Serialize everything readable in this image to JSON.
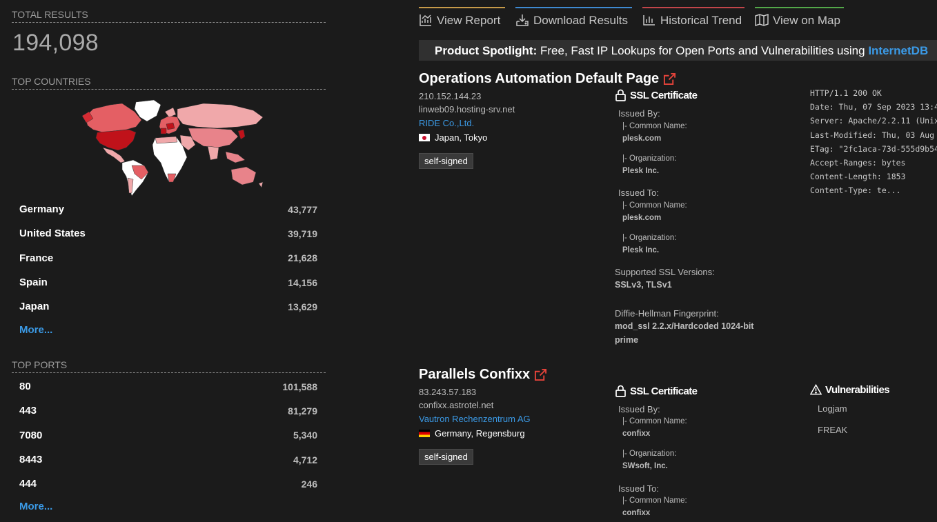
{
  "summary": {
    "total_label": "TOTAL RESULTS",
    "total_value": "194,098"
  },
  "countries": {
    "label": "TOP COUNTRIES",
    "items": [
      {
        "name": "Germany",
        "value": "43,777"
      },
      {
        "name": "United States",
        "value": "39,719"
      },
      {
        "name": "France",
        "value": "21,628"
      },
      {
        "name": "Spain",
        "value": "14,156"
      },
      {
        "name": "Japan",
        "value": "13,629"
      }
    ],
    "more": "More..."
  },
  "ports": {
    "label": "TOP PORTS",
    "items": [
      {
        "name": "80",
        "value": "101,588"
      },
      {
        "name": "443",
        "value": "81,279"
      },
      {
        "name": "7080",
        "value": "5,340"
      },
      {
        "name": "8443",
        "value": "4,712"
      },
      {
        "name": "444",
        "value": "246"
      }
    ],
    "more": "More..."
  },
  "tabs": {
    "report": "View Report",
    "download": "Download Results",
    "trend": "Historical Trend",
    "map": "View on Map"
  },
  "spotlight": {
    "prefix": "Product Spotlight:",
    "text": "Free, Fast IP Lookups for Open Ports and Vulnerabilities using",
    "link": "InternetDB"
  },
  "results": [
    {
      "title": "Operations Automation Default Page",
      "ip": "210.152.144.23",
      "hostname": "linweb09.hosting-srv.net",
      "org": "RIDE Co.,Ltd.",
      "location": "Japan, Tokyo",
      "tag": "self-signed",
      "ssl": {
        "title": "SSL Certificate",
        "issued_by": "Issued By:",
        "by_cn_label": "|- Common Name:",
        "by_cn": "plesk.com",
        "by_org_label": "|- Organization:",
        "by_org": "Plesk Inc.",
        "issued_to": "Issued To:",
        "to_cn_label": "|- Common Name:",
        "to_cn": "plesk.com",
        "to_org_label": "|- Organization:",
        "to_org": "Plesk Inc.",
        "versions_label": "Supported SSL Versions:",
        "versions": "SSLv3, TLSv1",
        "dh_label": "Diffie-Hellman Fingerprint:",
        "dh_line1": "mod_ssl 2.2.x/Hardcoded 1024-bit",
        "dh_line2": "prime"
      },
      "headers": [
        "HTTP/1.1 200 OK",
        "Date: Thu, 07 Sep 2023 13:4",
        "Server: Apache/2.2.11 (Unix",
        "Last-Modified: Thu, 03 Aug",
        "ETag: \"2fc1aca-73d-555d9b54",
        "Accept-Ranges: bytes",
        "Content-Length: 1853",
        "Content-Type: te..."
      ]
    },
    {
      "title": "Parallels Confixx",
      "ip": "83.243.57.183",
      "hostname": "confixx.astrotel.net",
      "org": "Vautron Rechenzentrum AG",
      "location": "Germany, Regensburg",
      "tag": "self-signed",
      "ssl": {
        "title": "SSL Certificate",
        "issued_by": "Issued By:",
        "by_cn_label": "|- Common Name:",
        "by_cn": "confixx",
        "by_org_label": "|- Organization:",
        "by_org": "SWsoft, Inc.",
        "issued_to": "Issued To:",
        "to_cn_label": "|- Common Name:",
        "to_cn": "confixx"
      },
      "vulns": {
        "title": "Vulnerabilities",
        "items": [
          "Logjam",
          "FREAK"
        ]
      }
    }
  ],
  "icons": {
    "tab_report": "chart-icon",
    "tab_download": "download-icon",
    "tab_trend": "bar-chart-icon",
    "tab_map": "map-icon",
    "external": "external-link-icon",
    "lock": "lock-icon",
    "warning": "warning-icon"
  },
  "colors": {
    "background": "#1b1b1b",
    "link": "#3b9ae6",
    "external_icon": "#e5433a"
  }
}
